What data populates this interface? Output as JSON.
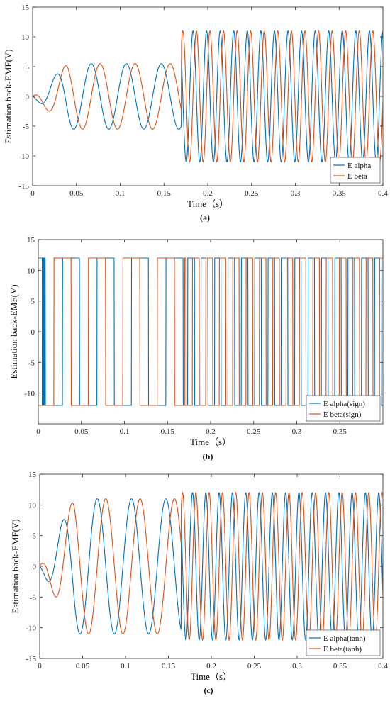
{
  "colors": {
    "alpha": "#0072BD",
    "beta": "#D95319",
    "grid": "#ffffff",
    "axis": "#262626"
  },
  "chart_data": [
    {
      "type": "line",
      "xlabel": "Time（s）",
      "ylabel": "Estimation back-EMF(V)",
      "caption": "(a)",
      "xlim": [
        0,
        0.4
      ],
      "ylim": [
        -15,
        15
      ],
      "xticks": [
        0,
        0.05,
        0.1,
        0.15,
        0.2,
        0.25,
        0.3,
        0.35,
        0.4
      ],
      "xtick_labels": [
        "0",
        "0.05",
        "0.1",
        "0.15",
        "0.2",
        "0.25",
        "0.3",
        "0.35",
        "0.4"
      ],
      "yticks": [
        -15,
        -10,
        -5,
        0,
        5,
        10,
        15
      ],
      "ytick_labels": [
        "-15",
        "-10",
        "-5",
        "0",
        "5",
        "10",
        "15"
      ],
      "legend_position": "bottom-right",
      "model": {
        "kind": "sine",
        "t_switch": 0.17,
        "amp1": 5.5,
        "amp2": 11.0,
        "period1": 0.04,
        "period2": 0.0155,
        "transient": true
      },
      "series": [
        {
          "name": "E alpha",
          "color_key": "alpha",
          "phase": "alpha"
        },
        {
          "name": "E beta",
          "color_key": "beta",
          "phase": "beta"
        }
      ]
    },
    {
      "type": "line",
      "xlabel": "Time（s）",
      "ylabel": "Estimation back-EMF(V)",
      "caption": "(b)",
      "xlim": [
        0,
        0.4
      ],
      "ylim": [
        -15,
        15
      ],
      "xticks": [
        0,
        0.05,
        0.1,
        0.15,
        0.2,
        0.25,
        0.3,
        0.35
      ],
      "xtick_labels": [
        "0",
        "0.05",
        "0.1",
        "0.15",
        "0.2",
        "0.25",
        "0.3",
        "0.35"
      ],
      "yticks": [
        -10,
        -5,
        0,
        5,
        10,
        15
      ],
      "ytick_labels": [
        "-10",
        "-5",
        "0",
        "5",
        "10",
        "15"
      ],
      "legend_position": "bottom-right",
      "model": {
        "kind": "square",
        "level": 12,
        "t_switch": 0.17,
        "period1": 0.04,
        "period2": 0.0155
      },
      "series": [
        {
          "name": "E alpha(sign)",
          "color_key": "alpha",
          "phase": "alpha"
        },
        {
          "name": "E beta(sign)",
          "color_key": "beta",
          "phase": "beta"
        }
      ]
    },
    {
      "type": "line",
      "xlabel": "Time（s）",
      "ylabel": "Estimation back-EMF(V)",
      "caption": "(c)",
      "xlim": [
        0,
        0.4
      ],
      "ylim": [
        -15,
        15
      ],
      "xticks": [
        0,
        0.05,
        0.1,
        0.15,
        0.2,
        0.25,
        0.3,
        0.35,
        0.4
      ],
      "xtick_labels": [
        "0",
        "0.05",
        "0.1",
        "0.15",
        "0.2",
        "0.25",
        "0.3",
        "0.35",
        "0.4"
      ],
      "yticks": [
        -15,
        -10,
        -5,
        0,
        5,
        10,
        15
      ],
      "ytick_labels": [
        "-15",
        "-10",
        "-5",
        "0",
        "5",
        "10",
        "15"
      ],
      "legend_position": "bottom-right",
      "model": {
        "kind": "sine",
        "t_switch": 0.165,
        "amp1": 11.0,
        "amp2": 12.0,
        "period1": 0.04,
        "period2": 0.0155,
        "transient": true
      },
      "series": [
        {
          "name": "E alpha(tanh)",
          "color_key": "alpha",
          "phase": "alpha"
        },
        {
          "name": "E beta(tanh)",
          "color_key": "beta",
          "phase": "beta"
        }
      ]
    }
  ]
}
